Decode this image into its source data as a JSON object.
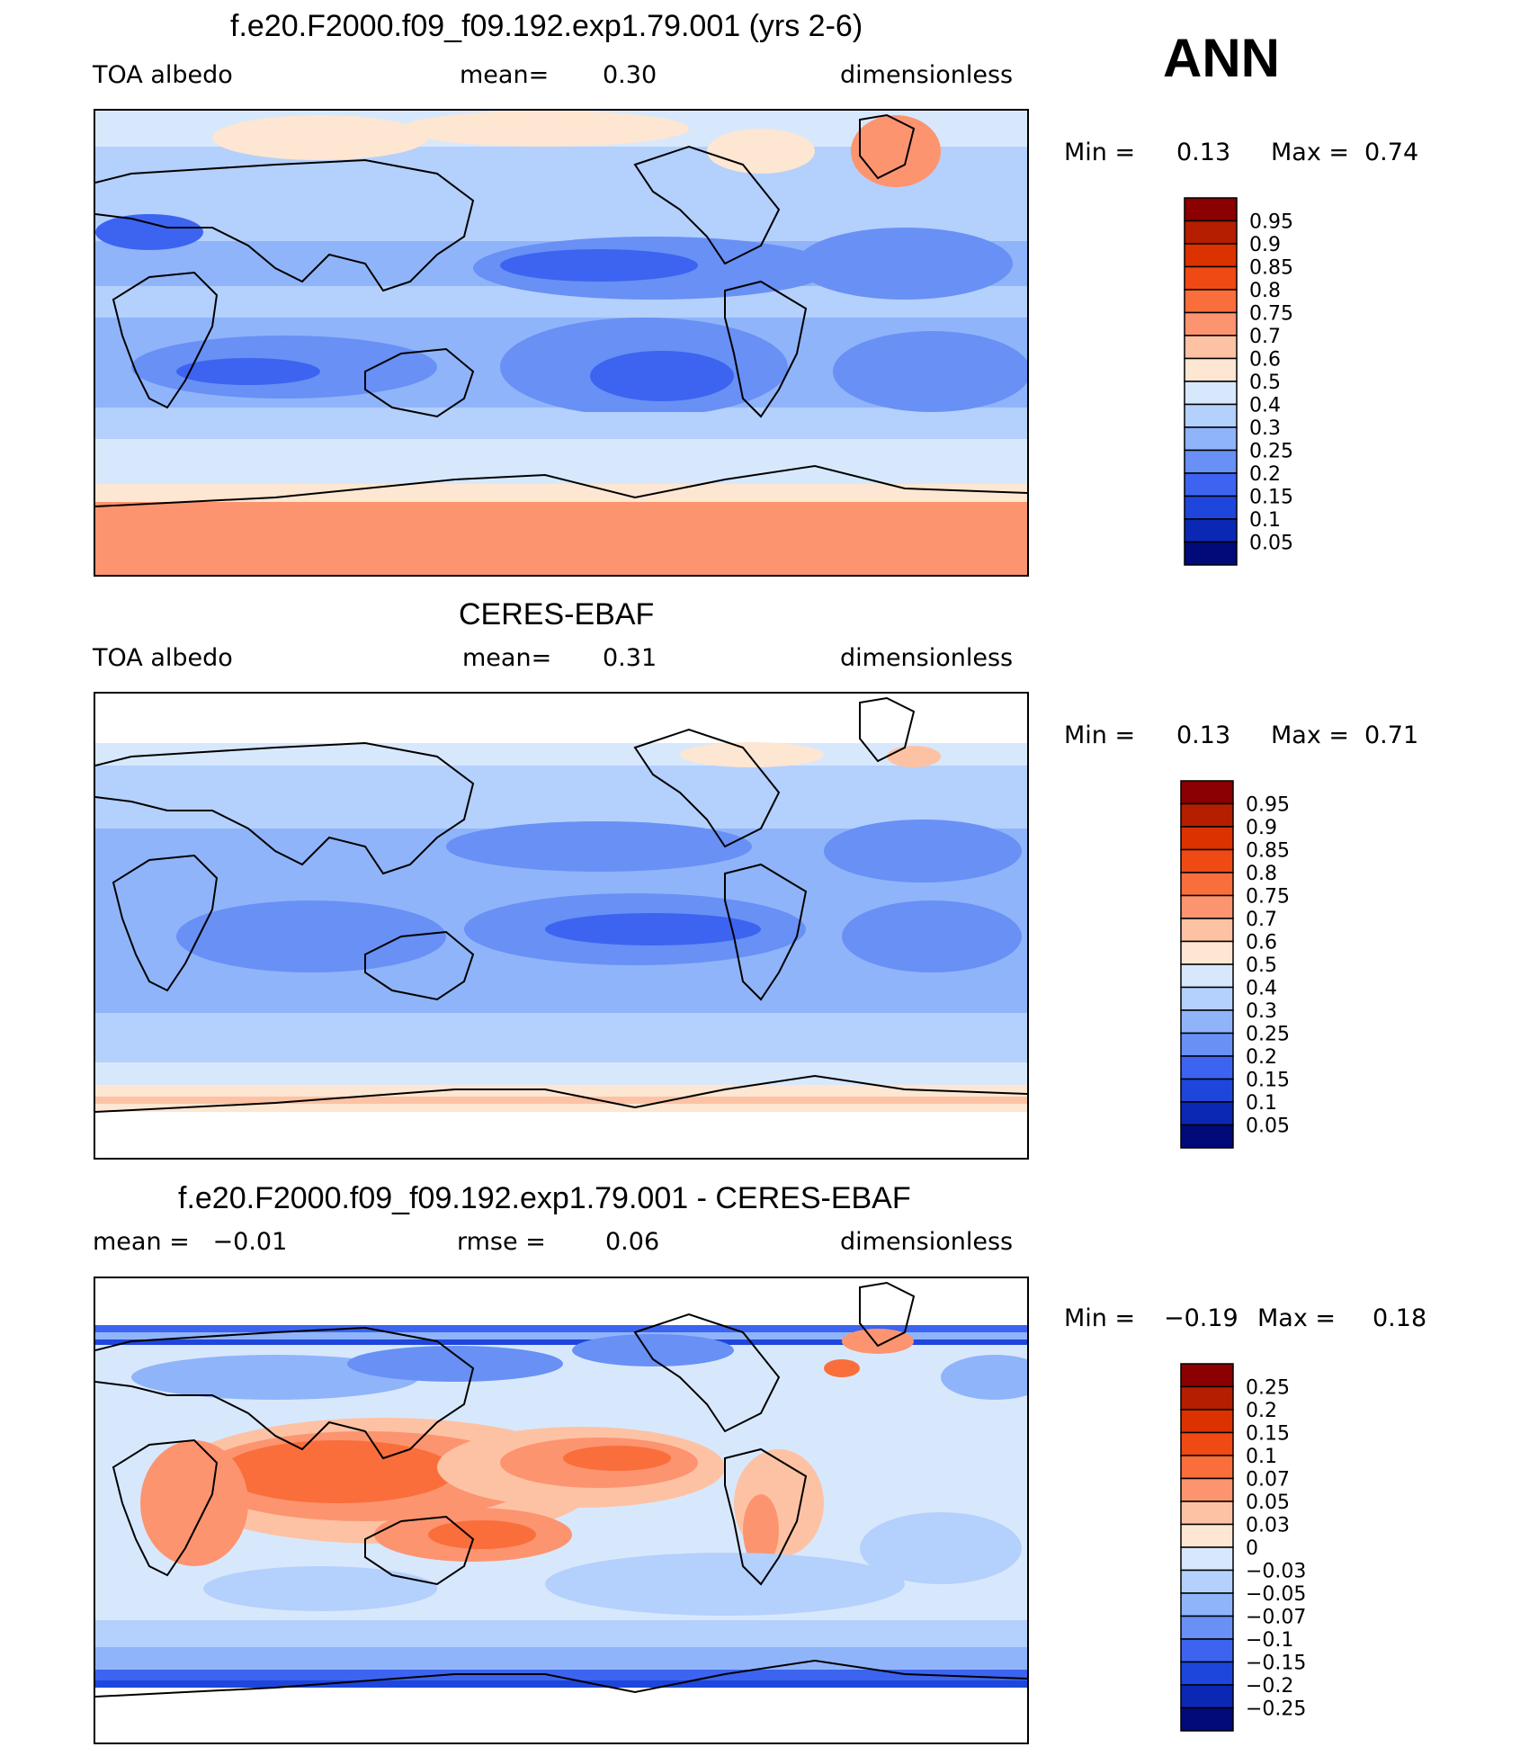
{
  "season": "ANN",
  "panels": [
    {
      "title": "f.e20.F2000.f09_f09.192.exp1.79.001 (yrs 2-6)",
      "left": "TOA albedo",
      "center_label": "mean=",
      "center_value": "0.30",
      "right": "dimensionless",
      "min_label": "Min =",
      "min_value": "0.13",
      "max_label": "Max =",
      "max_value": "0.74",
      "map_id": "model"
    },
    {
      "title": "CERES-EBAF",
      "left": "TOA albedo",
      "center_label": "mean=",
      "center_value": "0.31",
      "right": "dimensionless",
      "min_label": "Min =",
      "min_value": "0.13",
      "max_label": "Max =",
      "max_value": "0.71",
      "map_id": "obs"
    },
    {
      "title": "f.e20.F2000.f09_f09.192.exp1.79.001 - CERES-EBAF",
      "left": "mean =   −0.01",
      "center_label": "rmse =",
      "center_value": "0.06",
      "right": "dimensionless",
      "min_label": "Min =",
      "min_value": "−0.19",
      "max_label": "Max =",
      "max_value": "0.18",
      "map_id": "diff"
    }
  ],
  "colorbars": {
    "albedo": {
      "labels": [
        "0.95",
        "0.9",
        "0.85",
        "0.8",
        "0.75",
        "0.7",
        "0.6",
        "0.5",
        "0.4",
        "0.3",
        "0.25",
        "0.2",
        "0.15",
        "0.1",
        "0.05"
      ],
      "colors": [
        "#8b0000",
        "#b51e00",
        "#dc3200",
        "#f04a14",
        "#fa6e3c",
        "#fc9470",
        "#fdc2a4",
        "#fde6d2",
        "#d8e8fc",
        "#b4d0fc",
        "#90b4fa",
        "#6890f5",
        "#3c64f0",
        "#1e46dc",
        "#0a28b4",
        "#000a78"
      ]
    },
    "diff": {
      "labels": [
        "0.25",
        "0.2",
        "0.15",
        "0.1",
        "0.07",
        "0.05",
        "0.03",
        "0",
        "−0.03",
        "−0.05",
        "−0.07",
        "−0.1",
        "−0.15",
        "−0.2",
        "−0.25"
      ],
      "colors": [
        "#8b0000",
        "#b51e00",
        "#dc3200",
        "#f04a14",
        "#fa6e3c",
        "#fc9470",
        "#fdc2a4",
        "#fde6d2",
        "#d8e8fc",
        "#b4d0fc",
        "#90b4fa",
        "#6890f5",
        "#3c64f0",
        "#1e46dc",
        "#0a28b4",
        "#000a78"
      ]
    }
  },
  "palette": {
    "pale_blue": "#d8e8fc",
    "light_blue": "#b4d0fc",
    "mid_blue": "#90b4fa",
    "blue": "#6890f5",
    "deep_blue": "#3c64f0",
    "darker_blue": "#1e46dc",
    "pale_orange": "#fde6d2",
    "peach": "#fdc2a4",
    "salmon": "#fc9470",
    "orange": "#fa6e3c",
    "red_orange": "#f04a14",
    "white": "#ffffff",
    "coast": "#000000"
  }
}
